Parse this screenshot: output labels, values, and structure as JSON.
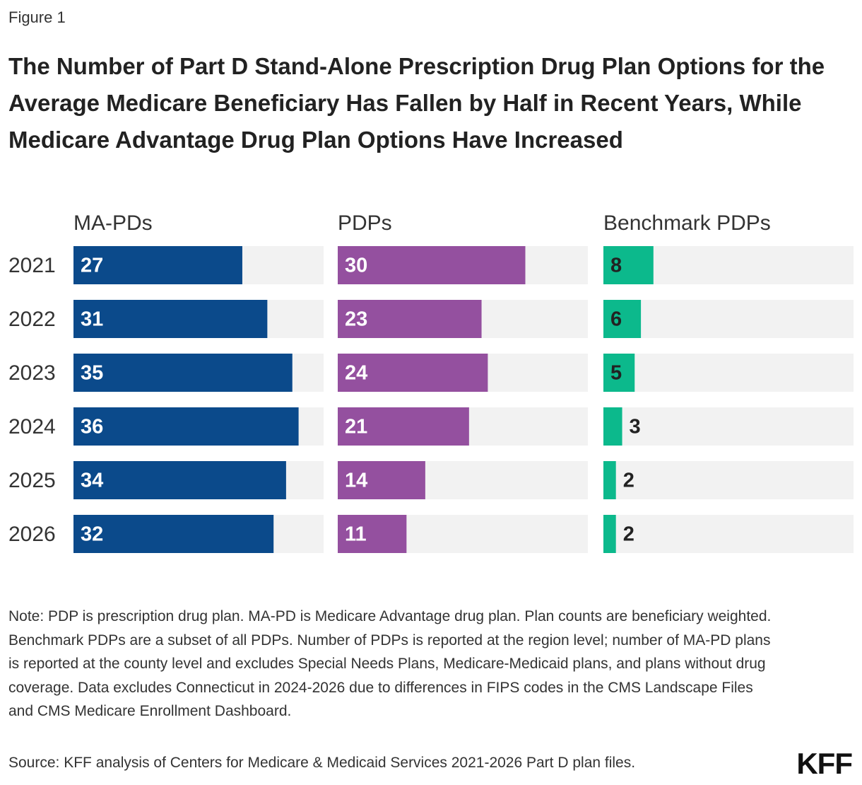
{
  "chart_data": {
    "type": "bar",
    "figure_label": "Figure 1",
    "title": "The Number of Part D Stand-Alone Prescription Drug Plan Options for the Average Medicare Beneficiary Has Fallen by Half in Recent Years, While Medicare Advantage Drug Plan Options Have Increased",
    "categories": [
      "2021",
      "2022",
      "2023",
      "2024",
      "2025",
      "2026"
    ],
    "series": [
      {
        "name": "MA-PDs",
        "color": "#0b4a8b",
        "label_color": "#ffffff",
        "values": [
          27,
          31,
          35,
          36,
          34,
          32
        ]
      },
      {
        "name": "PDPs",
        "color": "#94509f",
        "label_color": "#ffffff",
        "values": [
          30,
          23,
          24,
          21,
          14,
          11
        ]
      },
      {
        "name": "Benchmark PDPs",
        "color": "#0cb98c",
        "label_color": "#222222",
        "values": [
          8,
          6,
          5,
          3,
          2,
          2
        ]
      }
    ],
    "xlim": [
      0,
      40
    ],
    "note": "Note: PDP is prescription drug plan. MA-PD is Medicare Advantage drug plan. Plan counts are beneficiary weighted. Benchmark PDPs are a subset of all PDPs. Number of PDPs is reported at the region level; number of MA-PD plans is reported at the county level and excludes Special Needs Plans, Medicare-Medicaid plans, and plans without drug coverage. Data excludes Connecticut in 2024-2026 due to differences in FIPS codes in the CMS Landscape Files and CMS Medicare Enrollment Dashboard.",
    "source": "Source: KFF analysis of Centers for Medicare & Medicaid Services 2021-2026 Part D plan files.",
    "logo": "KFF"
  }
}
